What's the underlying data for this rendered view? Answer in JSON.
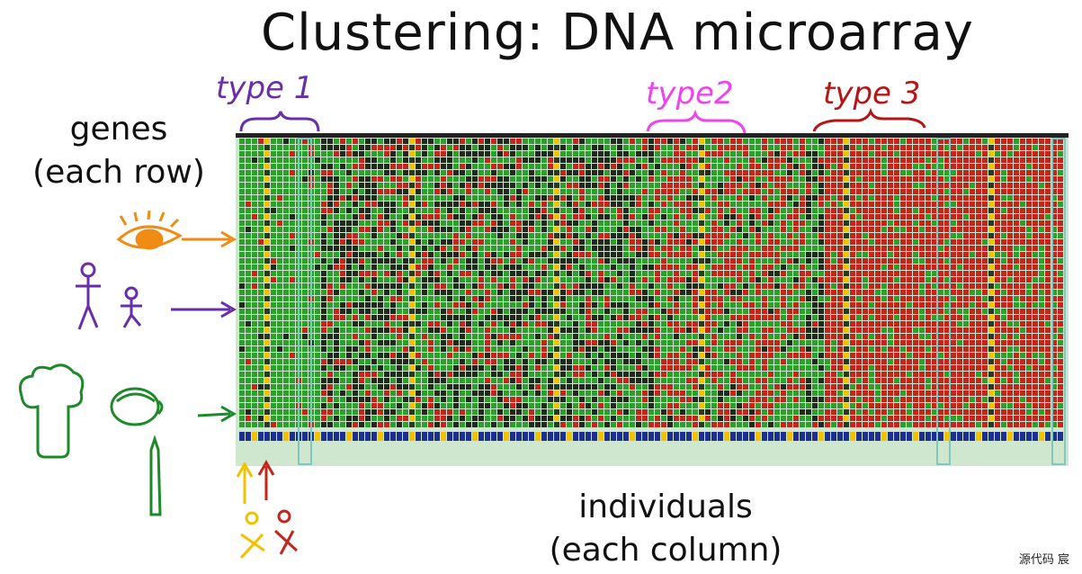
{
  "title": "Clustering: DNA microarray",
  "annotations": {
    "type1": "type 1",
    "type2": "type2",
    "type3": "type 3"
  },
  "axes": {
    "rows_label_line1": "genes",
    "rows_label_line2": "(each row)",
    "cols_label_line1": "individuals",
    "cols_label_line2": "(each column)"
  },
  "watermark": "源代码  宸",
  "colors": {
    "green": "#2f9e2f",
    "red": "#c3261c",
    "dark": "#202a1c",
    "purple": "#6a2fa8",
    "magenta": "#ee44ee",
    "darkred": "#b41616",
    "orange": "#f08c14",
    "plant_green": "#1d8a2a",
    "yellow": "#f2c200"
  },
  "chart_data": {
    "type": "heatmap",
    "rows_label": "genes (each row)",
    "columns_label": "individuals (each column)",
    "clusters": [
      "type 1",
      "type2",
      "type 3"
    ],
    "icons": [
      "eye-icon",
      "person-icons",
      "vegetable-icons"
    ]
  }
}
